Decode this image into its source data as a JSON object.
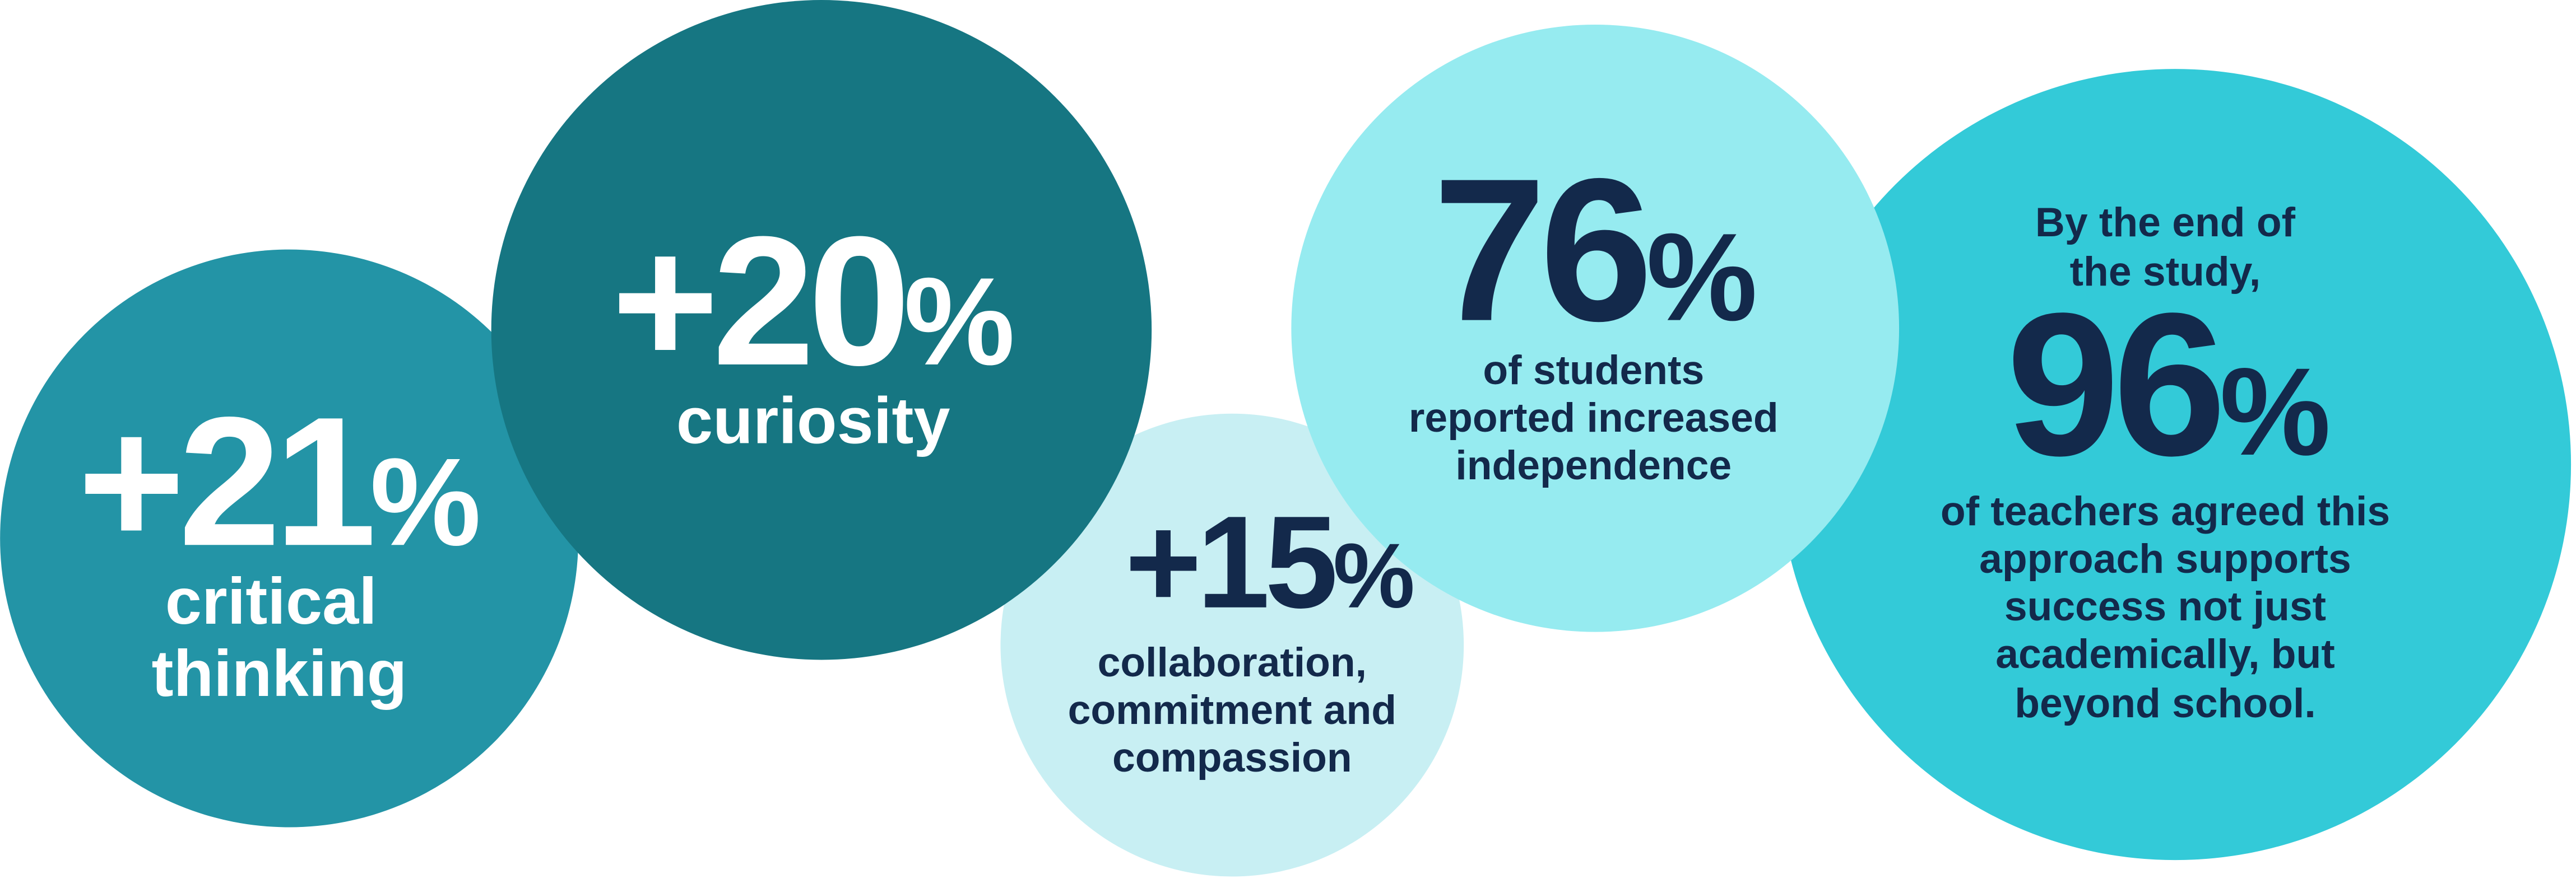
{
  "stats": [
    {
      "value": "+21",
      "unit": "%",
      "label": [
        "critical",
        "thinking"
      ]
    },
    {
      "value": "+20",
      "unit": "%",
      "label": [
        "curiosity"
      ]
    },
    {
      "value": "+15",
      "unit": "%",
      "label": [
        "collaboration,",
        "commitment and",
        "compassion"
      ]
    },
    {
      "value": "76",
      "unit": "%",
      "label": [
        "of students",
        "reported increased",
        "independence"
      ]
    },
    {
      "intro": [
        "By the end of",
        "the study,"
      ],
      "value": "96",
      "unit": "%",
      "label": [
        "of teachers agreed this",
        "approach supports",
        "success not just",
        "academically, but",
        "beyond school."
      ]
    }
  ]
}
